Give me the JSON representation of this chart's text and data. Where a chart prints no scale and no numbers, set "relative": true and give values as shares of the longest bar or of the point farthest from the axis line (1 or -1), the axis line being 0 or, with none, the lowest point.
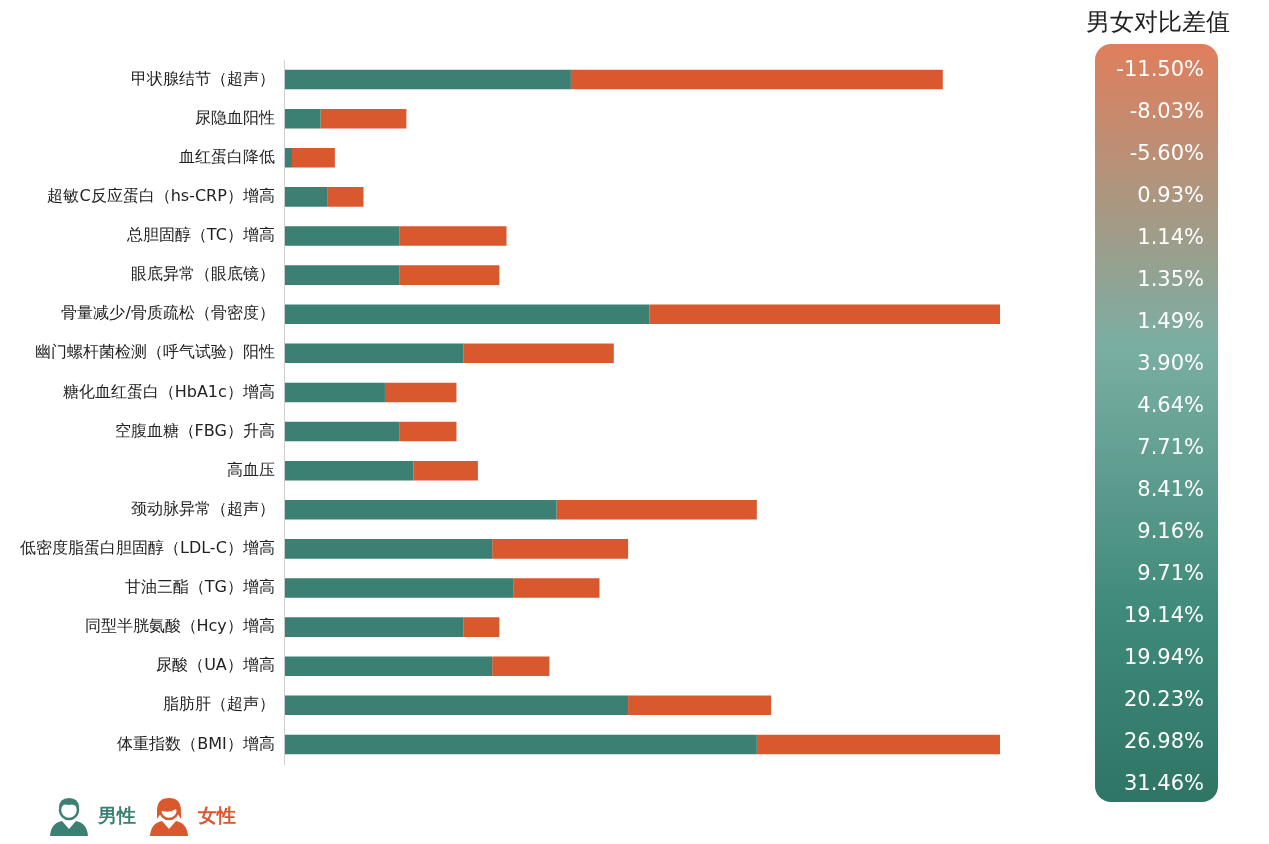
{
  "chart_data": [
    {
      "type": "bar",
      "orientation": "horizontal",
      "stacked": true,
      "relative": true,
      "legend": "bottom left",
      "categories": [
        "甲状腺结节（超声）",
        "尿隐血阳性",
        "血红蛋白降低",
        "超敏C反应蛋白（hs-CRP）增高",
        "总胆固醇（TC）增高",
        "眼底异常（眼底镜）",
        "骨量减少/骨质疏松（骨密度）",
        "幽门螺杆菌检测（呼气试验）阳性",
        "糖化血红蛋白（HbA1c）增高",
        "空腹血糖（FBG）升高",
        "高血压",
        "颈动脉异常（超声）",
        "低密度脂蛋白胆固醇（LDL-C）增高",
        "甘油三酯（TG）增高",
        "同型半胱氨酸（Hcy）增高",
        "尿酸（UA）增高",
        "脂肪肝（超声）",
        "体重指数（BMI）增高"
      ],
      "series": [
        {
          "name": "男性",
          "color": "#3b8072",
          "values": [
            0.4,
            0.05,
            0.01,
            0.06,
            0.16,
            0.16,
            0.51,
            0.25,
            0.14,
            0.16,
            0.18,
            0.38,
            0.29,
            0.32,
            0.25,
            0.29,
            0.48,
            0.66
          ]
        },
        {
          "name": "女性",
          "color": "#d9582e",
          "values": [
            0.52,
            0.12,
            0.06,
            0.05,
            0.15,
            0.14,
            0.49,
            0.21,
            0.1,
            0.08,
            0.09,
            0.28,
            0.19,
            0.12,
            0.05,
            0.08,
            0.2,
            0.34
          ]
        }
      ]
    },
    {
      "type": "other",
      "title": "男女对比差值",
      "annotations": [
        "-11.50%",
        "-8.03%",
        "-5.60%",
        "0.93%",
        "1.14%",
        "1.35%",
        "1.49%",
        "3.90%",
        "4.64%",
        "7.71%",
        "8.41%",
        "9.16%",
        "9.71%",
        "19.14%",
        "19.94%",
        "20.23%",
        "26.98%",
        "31.46%"
      ]
    }
  ]
}
